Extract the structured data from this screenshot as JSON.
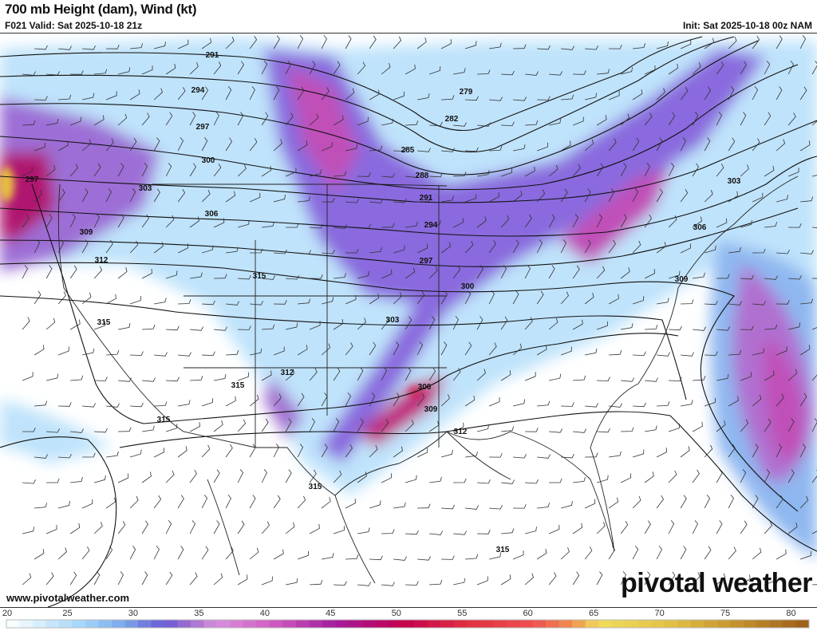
{
  "header": {
    "title": "700 mb Height (dam), Wind (kt)",
    "valid": "F021 Valid: Sat 2025-10-18 21z",
    "init": "Init: Sat 2025-10-18 00z NAM"
  },
  "footer": {
    "website": "www.pivotalweather.com",
    "logo_text": "pivotal weather"
  },
  "colorbar": {
    "units": "kt",
    "ticks": [
      "20",
      "25",
      "30",
      "35",
      "40",
      "45",
      "50",
      "55",
      "60",
      "65",
      "70",
      "75",
      "80"
    ],
    "range": [
      20,
      81
    ],
    "stops": [
      {
        "kt": 20,
        "color": "#ffffff"
      },
      {
        "kt": 23,
        "color": "#cfeafc"
      },
      {
        "kt": 26,
        "color": "#a0d4f8"
      },
      {
        "kt": 29,
        "color": "#7aa6ea"
      },
      {
        "kt": 32,
        "color": "#6a58d4"
      },
      {
        "kt": 34,
        "color": "#a070d0"
      },
      {
        "kt": 36,
        "color": "#d890dc"
      },
      {
        "kt": 40,
        "color": "#d060c4"
      },
      {
        "kt": 45,
        "color": "#a41c9c"
      },
      {
        "kt": 50,
        "color": "#c20050"
      },
      {
        "kt": 55,
        "color": "#e03040"
      },
      {
        "kt": 60,
        "color": "#ee5050"
      },
      {
        "kt": 63,
        "color": "#f09050"
      },
      {
        "kt": 65,
        "color": "#f0dc5c"
      },
      {
        "kt": 70,
        "color": "#e4c448"
      },
      {
        "kt": 75,
        "color": "#c89830"
      },
      {
        "kt": 81,
        "color": "#9c5c18"
      }
    ]
  },
  "height_labels": [
    "291",
    "294",
    "297",
    "300",
    "303",
    "306",
    "309",
    "312",
    "315",
    "279",
    "282",
    "285",
    "288",
    "291",
    "294",
    "297",
    "300",
    "303",
    "306",
    "309",
    "312",
    "315",
    "315",
    "315",
    "312",
    "309",
    "306",
    "303",
    "315",
    "315",
    "297"
  ]
}
